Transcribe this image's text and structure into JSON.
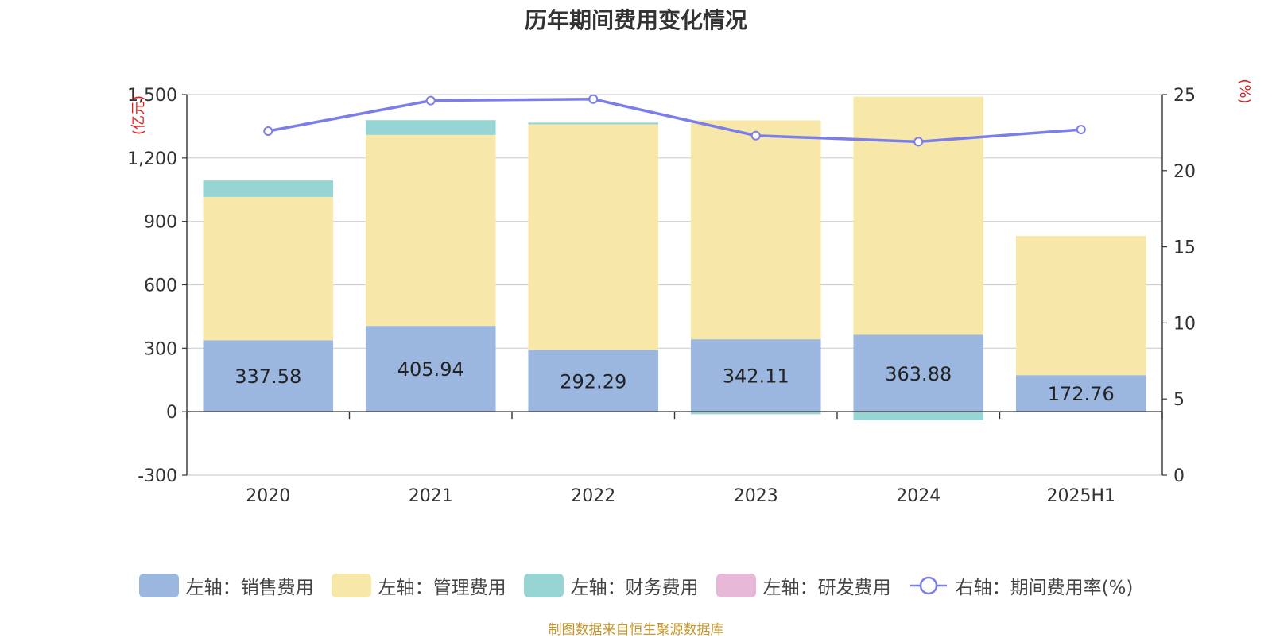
{
  "chart_data": {
    "type": "bar",
    "title": "历年期间费用变化情况",
    "categories": [
      "2020",
      "2021",
      "2022",
      "2023",
      "2024",
      "2025H1"
    ],
    "left_axis": {
      "unit": "(亿元)",
      "ylim": [
        -300,
        1500
      ],
      "ticks": [
        "-300",
        "0",
        "300",
        "600",
        "900",
        "1,200",
        "1,500"
      ],
      "tick_values": [
        -300,
        0,
        300,
        600,
        900,
        1200,
        1500
      ]
    },
    "right_axis": {
      "unit": "(%)",
      "ylim": [
        0,
        25
      ],
      "ticks": [
        "0",
        "5",
        "10",
        "15",
        "20",
        "25"
      ],
      "tick_values": [
        0,
        5,
        10,
        15,
        20,
        25
      ]
    },
    "series": [
      {
        "name": "左轴：销售费用",
        "type": "bar",
        "axis": "left",
        "color": "#9bb7e0",
        "values": [
          337.58,
          405.94,
          292.29,
          342.11,
          363.88,
          172.76
        ],
        "labels": [
          "337.58",
          "405.94",
          "292.29",
          "342.11",
          "363.88",
          "172.76"
        ]
      },
      {
        "name": "左轴：管理费用",
        "type": "bar",
        "axis": "left",
        "color": "#f7e7a8",
        "values": [
          678,
          903,
          1067,
          1036,
          1126,
          658
        ]
      },
      {
        "name": "左轴：财务费用",
        "type": "bar",
        "axis": "left",
        "color": "#96d5d4",
        "values": [
          78,
          70,
          8,
          -12,
          -40,
          0
        ]
      },
      {
        "name": "左轴：研发费用",
        "type": "bar",
        "axis": "left",
        "color": "#e8b8d9",
        "values": [
          0,
          0,
          0,
          0,
          0,
          0
        ]
      },
      {
        "name": "右轴：期间费用率(%)",
        "type": "line",
        "axis": "right",
        "color": "#7b7ee8",
        "values": [
          22.6,
          24.6,
          24.7,
          22.3,
          21.9,
          22.7
        ]
      }
    ],
    "grid": true,
    "legend_position": "bottom"
  },
  "source": "制图数据来自恒生聚源数据库"
}
